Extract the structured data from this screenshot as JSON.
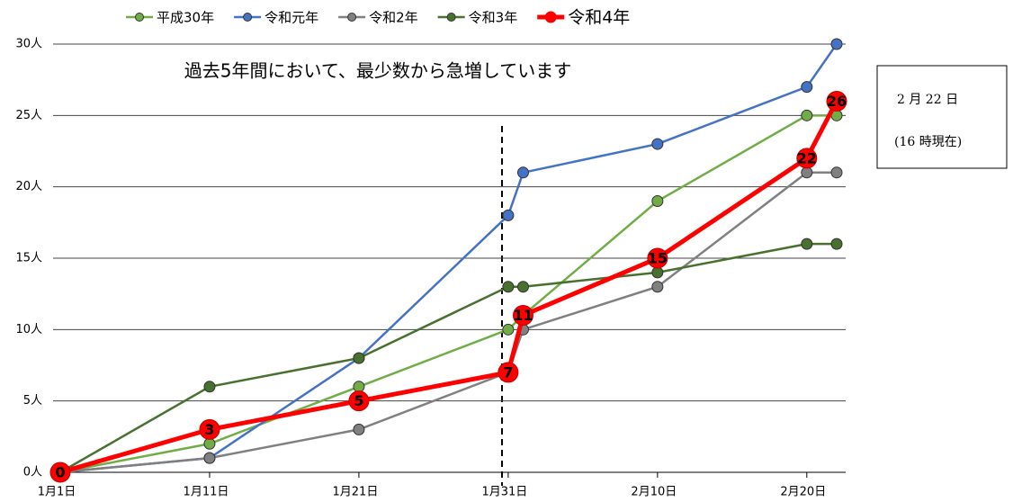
{
  "chart_data": {
    "type": "line",
    "annotation": "過去5年間において、最少数から急増しています",
    "note_lines": [
      "2 月 22 日",
      "(16 時現在)"
    ],
    "x": [
      0,
      10,
      20,
      30,
      31,
      40,
      50,
      52
    ],
    "xlim": [
      0,
      52
    ],
    "xticks": [
      {
        "value": 0,
        "label": "1月1日"
      },
      {
        "value": 10,
        "label": "1月11日"
      },
      {
        "value": 20,
        "label": "1月21日"
      },
      {
        "value": 30,
        "label": "1月31日"
      },
      {
        "value": 40,
        "label": "2月10日"
      },
      {
        "value": 50,
        "label": "2月20日"
      }
    ],
    "ylim": [
      0,
      30
    ],
    "yticks": [
      {
        "value": 0,
        "label": "0人"
      },
      {
        "value": 5,
        "label": "5人"
      },
      {
        "value": 10,
        "label": "10人"
      },
      {
        "value": 15,
        "label": "15人"
      },
      {
        "value": 20,
        "label": "20人"
      },
      {
        "value": 25,
        "label": "25人"
      },
      {
        "value": 30,
        "label": "30人"
      }
    ],
    "grid": true,
    "series": [
      {
        "name": "平成30年",
        "color": "#70ad47",
        "values": [
          0,
          2,
          6,
          10,
          11,
          19,
          25,
          25
        ]
      },
      {
        "name": "令和元年",
        "color": "#4472c4",
        "values": [
          0,
          1,
          8,
          18,
          21,
          23,
          27,
          30
        ]
      },
      {
        "name": "令和2年",
        "color": "#808080",
        "values": [
          0,
          1,
          3,
          7,
          10,
          13,
          21,
          21
        ]
      },
      {
        "name": "令和3年",
        "color": "#48702e",
        "values": [
          0,
          6,
          8,
          13,
          13,
          14,
          16,
          16
        ]
      },
      {
        "name": "令和4年",
        "color": "#ff0000",
        "values": [
          0,
          3,
          5,
          7,
          11,
          15,
          22,
          26
        ],
        "data_labels": true
      }
    ]
  }
}
